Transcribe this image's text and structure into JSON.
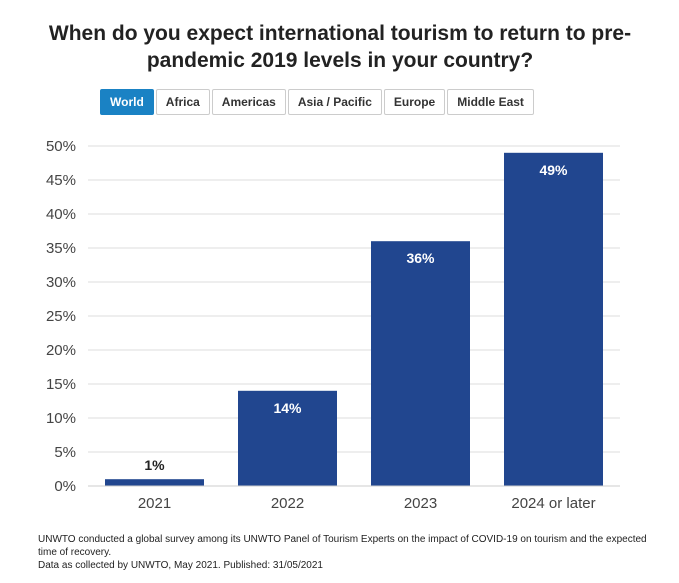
{
  "title": "When do you expect international tourism to return to pre-pandemic 2019 levels in your country?",
  "tabs": [
    {
      "label": "World",
      "active": true
    },
    {
      "label": "Africa",
      "active": false
    },
    {
      "label": "Americas",
      "active": false
    },
    {
      "label": "Asia / Pacific",
      "active": false
    },
    {
      "label": "Europe",
      "active": false
    },
    {
      "label": "Middle East",
      "active": false
    }
  ],
  "colors": {
    "bar": "#21468f",
    "tab_active": "#1a82c4",
    "grid": "#dddddd"
  },
  "chart_data": {
    "type": "bar",
    "categories": [
      "2021",
      "2022",
      "2023",
      "2024 or later"
    ],
    "values": [
      1,
      14,
      36,
      49
    ],
    "value_labels": [
      "1%",
      "14%",
      "36%",
      "49%"
    ],
    "yticks": [
      "0%",
      "5%",
      "10%",
      "15%",
      "20%",
      "25%",
      "30%",
      "35%",
      "40%",
      "45%",
      "50%"
    ],
    "ylim": [
      0,
      50
    ],
    "grid": true,
    "legend": "none"
  },
  "footer": {
    "line1": "UNWTO conducted a global survey among its UNWTO Panel of Tourism Experts on the impact of COVID-19 on tourism and the expected time of recovery.",
    "line2": "Data as collected by UNWTO, May 2021. Published: 31/05/2021"
  }
}
